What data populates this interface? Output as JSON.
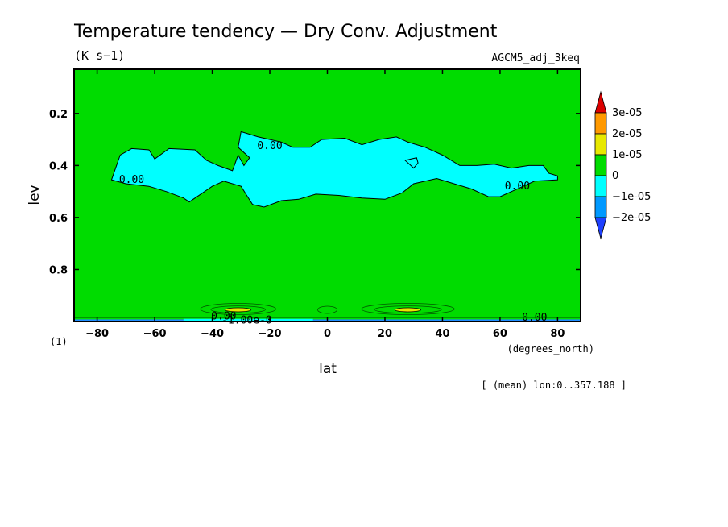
{
  "chart_data": {
    "type": "contour",
    "title": "Temperature tendency — Dry Conv. Adjustment",
    "units": "(K s−1)",
    "run_name": "AGCM5_adj_3keq",
    "xlabel": "lat",
    "xunits": "(degrees_north)",
    "ylabel": "lev",
    "yunits": "(1)",
    "footnote": "[ (mean) lon:0..357.188 ]",
    "xlim": [
      -88,
      88
    ],
    "ylim": [
      1.0,
      0.03
    ],
    "x_ticks": [
      -80,
      -60,
      -40,
      -20,
      0,
      20,
      40,
      60,
      80
    ],
    "x_tick_labels": [
      "−80",
      "−60",
      "−40",
      "−20",
      "0",
      "20",
      "40",
      "60",
      "80"
    ],
    "y_ticks": [
      0.2,
      0.4,
      0.6,
      0.8
    ],
    "y_tick_labels": [
      "0.2",
      "0.4",
      "0.6",
      "0.8"
    ],
    "contour_labels": [
      {
        "text": "0.00",
        "lat": -68,
        "lev": 0.455
      },
      {
        "text": "0.00",
        "lat": -20,
        "lev": 0.325
      },
      {
        "text": "0.00",
        "lat": 66,
        "lev": 0.48
      },
      {
        "text": "0.00",
        "lat": 72,
        "lev": 0.985
      },
      {
        "text": "0.00",
        "lat": -36,
        "lev": 0.98
      },
      {
        "text": "-1.00e-0",
        "lat": -28,
        "lev": 0.995
      }
    ],
    "negative_region_outline": [
      [
        -75,
        0.455
      ],
      [
        -72,
        0.36
      ],
      [
        -68,
        0.335
      ],
      [
        -62,
        0.34
      ],
      [
        -60,
        0.375
      ],
      [
        -55,
        0.335
      ],
      [
        -46,
        0.34
      ],
      [
        -42,
        0.38
      ],
      [
        -38,
        0.4
      ],
      [
        -33,
        0.42
      ],
      [
        -31,
        0.36
      ],
      [
        -29,
        0.4
      ],
      [
        -27,
        0.37
      ],
      [
        -31,
        0.33
      ],
      [
        -30,
        0.27
      ],
      [
        -24,
        0.29
      ],
      [
        -16,
        0.31
      ],
      [
        -12,
        0.33
      ],
      [
        -6,
        0.33
      ],
      [
        -2,
        0.3
      ],
      [
        6,
        0.295
      ],
      [
        12,
        0.32
      ],
      [
        18,
        0.3
      ],
      [
        24,
        0.29
      ],
      [
        28,
        0.31
      ],
      [
        34,
        0.33
      ],
      [
        40,
        0.36
      ],
      [
        46,
        0.4
      ],
      [
        52,
        0.4
      ],
      [
        58,
        0.395
      ],
      [
        64,
        0.41
      ],
      [
        70,
        0.4
      ],
      [
        75,
        0.4
      ],
      [
        77,
        0.43
      ],
      [
        80,
        0.44
      ],
      [
        80,
        0.455
      ],
      [
        72,
        0.46
      ],
      [
        66,
        0.49
      ],
      [
        60,
        0.52
      ],
      [
        56,
        0.52
      ],
      [
        50,
        0.49
      ],
      [
        44,
        0.47
      ],
      [
        38,
        0.45
      ],
      [
        30,
        0.47
      ],
      [
        26,
        0.505
      ],
      [
        20,
        0.53
      ],
      [
        12,
        0.525
      ],
      [
        4,
        0.515
      ],
      [
        -4,
        0.51
      ],
      [
        -10,
        0.53
      ],
      [
        -16,
        0.535
      ],
      [
        -22,
        0.56
      ],
      [
        -26,
        0.55
      ],
      [
        -28,
        0.515
      ],
      [
        -30,
        0.48
      ],
      [
        -36,
        0.46
      ],
      [
        -40,
        0.48
      ],
      [
        -44,
        0.51
      ],
      [
        -48,
        0.54
      ],
      [
        -50,
        0.525
      ],
      [
        -56,
        0.5
      ],
      [
        -62,
        0.48
      ],
      [
        -70,
        0.47
      ]
    ],
    "contour_levels": [
      -2e-05,
      -1e-05,
      0,
      1e-05,
      2e-05,
      3e-05
    ],
    "colorbar": {
      "labels": [
        "3e-05",
        "2e-05",
        "1e-05",
        "0",
        "−1e-05",
        "−2e-05"
      ],
      "colors": [
        "#dc0000",
        "#ff9900",
        "#e8e800",
        "#00dc00",
        "#00ffff",
        "#0099ff",
        "#1e40ff"
      ]
    }
  }
}
